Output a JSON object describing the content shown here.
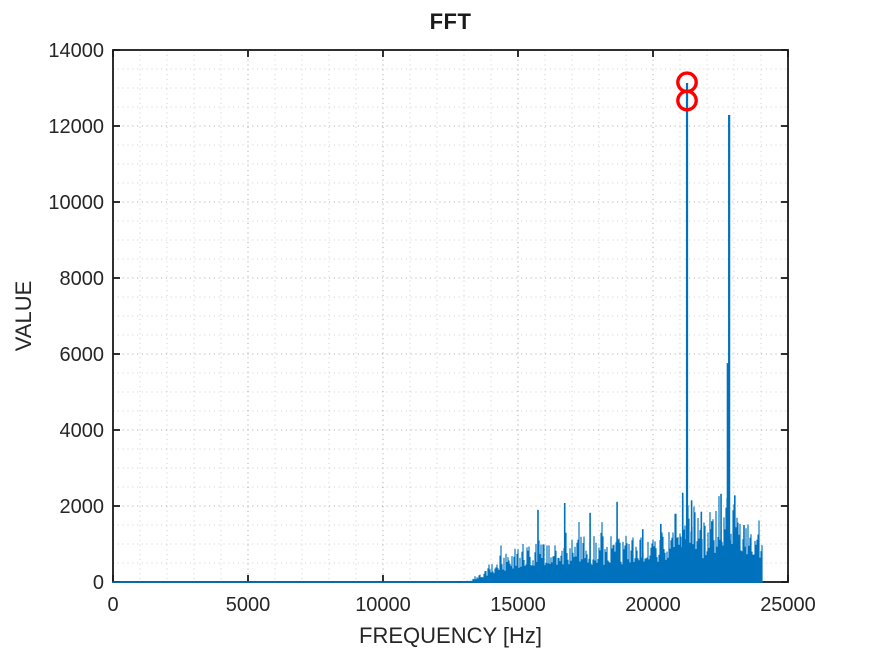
{
  "chart_data": {
    "type": "line",
    "title": "FFT",
    "xlabel": "FREQUENCY [Hz]",
    "ylabel": "VALUE",
    "xlim": [
      0,
      25000
    ],
    "ylim": [
      0,
      14000
    ],
    "x_ticks": [
      0,
      5000,
      10000,
      15000,
      20000,
      25000
    ],
    "y_ticks": [
      0,
      2000,
      4000,
      6000,
      8000,
      10000,
      12000,
      14000
    ],
    "grid": {
      "minor_x_step": 1000,
      "minor_y_step": 500,
      "major_x_step": 5000,
      "major_y_step": 2000,
      "style": "dotted",
      "minor_color": "rgba(0,0,0,0.16)",
      "major_color": "rgba(0,0,0,0.30)"
    },
    "legend": "none",
    "series_color": "#0072BD",
    "marker_color": "#FF0000",
    "axis_color": "#1a1a1a",
    "spectrum_start_hz": 13050,
    "spectrum_end_hz": 24040,
    "noise_envelope": [
      [
        0,
        2
      ],
      [
        12900,
        2
      ],
      [
        13050,
        15
      ],
      [
        13300,
        60
      ],
      [
        13600,
        170
      ],
      [
        13900,
        330
      ],
      [
        14200,
        480
      ],
      [
        14600,
        620
      ],
      [
        15000,
        730
      ],
      [
        15500,
        820
      ],
      [
        16000,
        870
      ],
      [
        17000,
        930
      ],
      [
        18000,
        900
      ],
      [
        19000,
        930
      ],
      [
        19800,
        980
      ],
      [
        20300,
        1050
      ],
      [
        20700,
        1300
      ],
      [
        21000,
        1700
      ],
      [
        21250,
        1950
      ],
      [
        21500,
        1600
      ],
      [
        21800,
        1200
      ],
      [
        22050,
        1100
      ],
      [
        22300,
        1500
      ],
      [
        22600,
        1900
      ],
      [
        22900,
        1850
      ],
      [
        23200,
        1450
      ],
      [
        23500,
        1150
      ],
      [
        23800,
        1000
      ],
      [
        24030,
        900
      ]
    ],
    "spikes": [
      [
        15740,
        1900
      ],
      [
        16730,
        2080
      ],
      [
        17670,
        1820
      ],
      [
        18670,
        2110
      ],
      [
        19620,
        1390
      ],
      [
        20290,
        1530
      ],
      [
        21100,
        2350
      ],
      [
        21430,
        2150
      ],
      [
        21790,
        1850
      ],
      [
        22180,
        1600
      ],
      [
        22520,
        2320
      ],
      [
        23030,
        2280
      ],
      [
        23370,
        1500
      ]
    ],
    "main_peaks": [
      {
        "hz": 21260,
        "value": 13130
      },
      {
        "hz": 22820,
        "value": 12290
      },
      {
        "hz": 22770,
        "value": 5760
      }
    ],
    "peak_markers": [
      {
        "hz": 21260,
        "value": 13150
      },
      {
        "hz": 21260,
        "value": 12670
      }
    ]
  }
}
